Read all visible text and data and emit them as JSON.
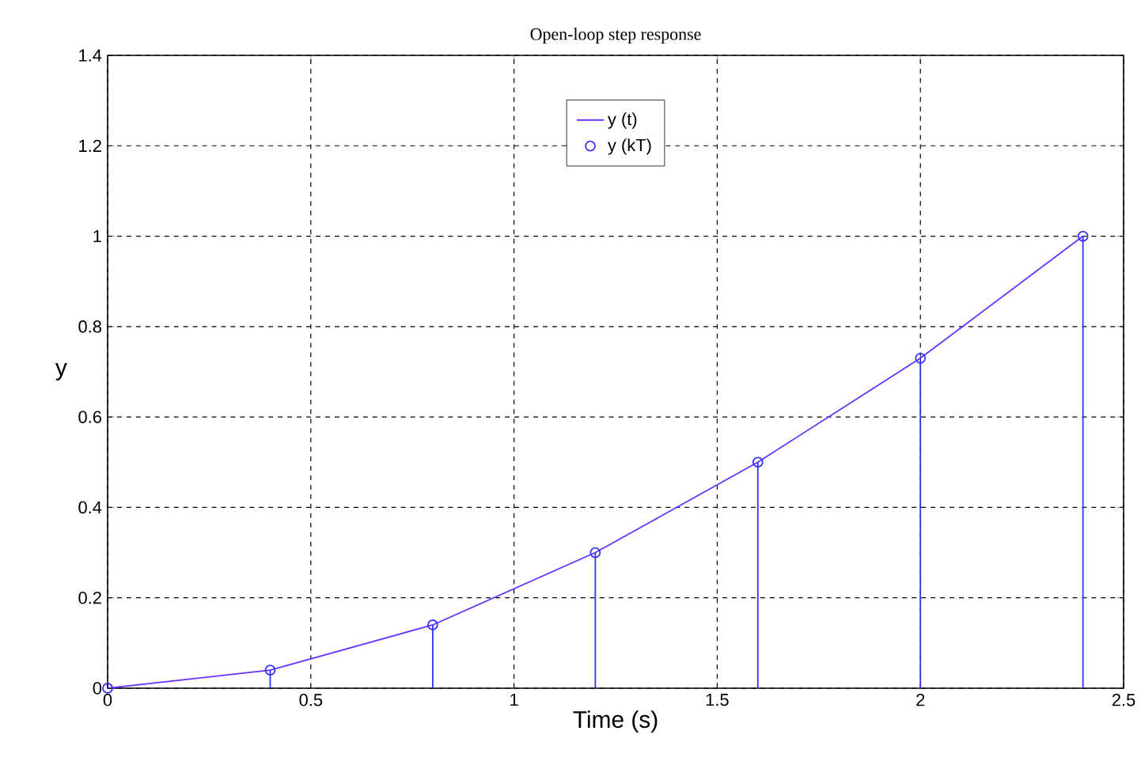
{
  "chart_data": {
    "type": "line",
    "title": "Open-loop step response",
    "xlabel": "Time (s)",
    "ylabel": "y",
    "xlim": [
      0,
      2.5
    ],
    "ylim": [
      0,
      1.4
    ],
    "xticks": [
      0,
      0.5,
      1,
      1.5,
      2,
      2.5
    ],
    "yticks": [
      0,
      0.2,
      0.4,
      0.6,
      0.8,
      1,
      1.2,
      1.4
    ],
    "grid": true,
    "legend": "top",
    "series": [
      {
        "name": "y (t)",
        "color": "#6633ff",
        "marker": "none",
        "x": [
          0,
          0.4,
          0.8,
          1.2,
          1.6,
          2.0,
          2.4
        ],
        "values": [
          0,
          0.04,
          0.14,
          0.3,
          0.5,
          0.73,
          1.0
        ]
      },
      {
        "name": "y (kT)",
        "type": "lollipop",
        "color": "#3333ff",
        "marker": "circle",
        "x": [
          0,
          0.4,
          0.8,
          1.2,
          1.6,
          2.0,
          2.4
        ],
        "values": [
          0,
          0.04,
          0.14,
          0.3,
          0.5,
          0.73,
          1.0
        ]
      }
    ]
  }
}
